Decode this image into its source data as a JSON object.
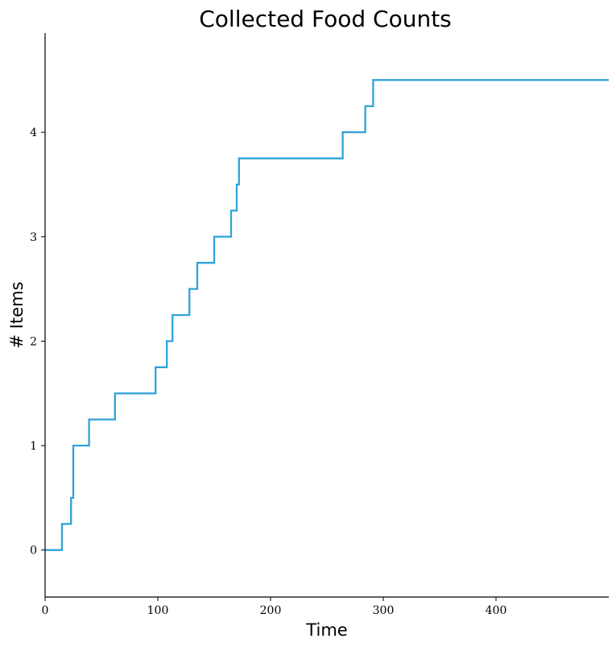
{
  "chart_data": {
    "type": "line",
    "title": "Collected Food Counts",
    "xlabel": "Time",
    "ylabel": "# Items",
    "xlim": [
      0,
      500
    ],
    "ylim": [
      -0.45,
      4.95
    ],
    "xticks": [
      0,
      100,
      200,
      300,
      400
    ],
    "xtick_labels": [
      "0",
      "100",
      "200",
      "300",
      "400"
    ],
    "yticks": [
      0,
      1,
      2,
      3,
      4
    ],
    "ytick_labels": [
      "0",
      "1",
      "2",
      "3",
      "4"
    ],
    "grid": false,
    "line_style": "step",
    "series": [
      {
        "color": "#2ea3d8",
        "x": [
          0,
          15,
          23,
          25,
          39,
          62,
          98,
          108,
          113,
          128,
          135,
          150,
          165,
          170,
          172,
          264,
          284,
          291,
          500
        ],
        "y": [
          0,
          0.25,
          0.5,
          1.0,
          1.25,
          1.5,
          1.75,
          2.0,
          2.25,
          2.5,
          2.75,
          3.0,
          3.25,
          3.5,
          3.75,
          4.0,
          4.25,
          4.5,
          4.5
        ]
      }
    ]
  }
}
